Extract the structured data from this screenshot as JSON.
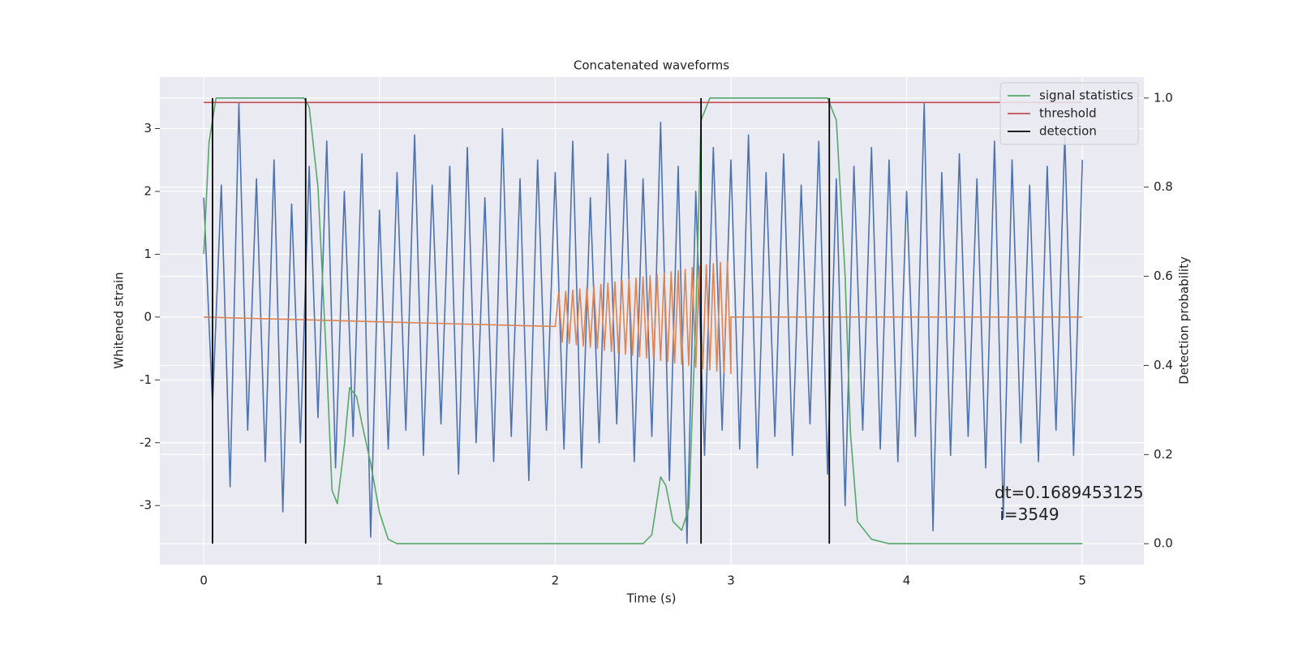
{
  "chart_data": {
    "type": "line",
    "title": "Concatenated waveforms",
    "xlabel": "Time (s)",
    "ylabel": "Whitened strain",
    "y2label": "Detection probability",
    "xlim": [
      -0.25,
      5.35
    ],
    "ylim": [
      -3.94,
      3.82
    ],
    "y2lim": [
      -0.047,
      1.047
    ],
    "xticks": [
      0,
      1,
      2,
      3,
      4,
      5
    ],
    "yticks": [
      -3,
      -2,
      -1,
      0,
      1,
      2,
      3
    ],
    "y2ticks": [
      {
        "value": 0,
        "label": "0.0"
      },
      0.2,
      0.4,
      0.6,
      0.8,
      {
        "value": 1,
        "label": "1.0"
      }
    ],
    "grid": true,
    "legend": "upper right",
    "series": [
      {
        "color": "#4c72b0",
        "x": [
          0,
          0.05,
          0.1,
          0.15,
          0.2,
          0.25,
          0.3,
          0.35,
          0.4,
          0.45,
          0.5,
          0.55,
          0.6,
          0.65,
          0.7,
          0.75,
          0.8,
          0.85,
          0.9,
          0.95,
          1,
          1.05,
          1.1,
          1.15,
          1.2,
          1.25,
          1.3,
          1.35,
          1.4,
          1.45,
          1.5,
          1.55,
          1.6,
          1.65,
          1.7,
          1.75,
          1.8,
          1.85,
          1.9,
          1.95,
          2,
          2.05,
          2.1,
          2.15,
          2.2,
          2.25,
          2.3,
          2.35,
          2.4,
          2.45,
          2.5,
          2.55,
          2.6,
          2.65,
          2.7,
          2.75,
          2.8,
          2.85,
          2.9,
          2.95,
          3,
          3.05,
          3.1,
          3.15,
          3.2,
          3.25,
          3.3,
          3.35,
          3.4,
          3.45,
          3.5,
          3.55,
          3.6,
          3.65,
          3.7,
          3.75,
          3.8,
          3.85,
          3.9,
          3.95,
          4,
          4.05,
          4.1,
          4.15,
          4.2,
          4.25,
          4.3,
          4.35,
          4.4,
          4.45,
          4.5,
          4.55,
          4.6,
          4.65,
          4.7,
          4.75,
          4.8,
          4.85,
          4.9,
          4.95,
          5
        ],
        "values": [
          1.9,
          -1.4,
          2.1,
          -2.7,
          3.4,
          -1.8,
          2.2,
          -2.3,
          2.5,
          -3.1,
          1.8,
          -2.0,
          2.4,
          -1.6,
          2.8,
          -2.4,
          2.0,
          -1.9,
          2.6,
          -3.5,
          1.7,
          -2.1,
          2.3,
          -1.8,
          2.9,
          -2.2,
          2.1,
          -1.7,
          2.4,
          -2.5,
          2.7,
          -2.0,
          1.9,
          -2.3,
          3.0,
          -1.9,
          2.2,
          -2.6,
          2.5,
          -1.8,
          2.3,
          -2.1,
          2.8,
          -2.4,
          1.9,
          -2.0,
          2.6,
          -1.7,
          2.5,
          -2.3,
          2.2,
          -1.9,
          3.1,
          -2.6,
          2.4,
          -3.6,
          2.0,
          -2.2,
          2.7,
          -1.8,
          2.5,
          -2.1,
          2.9,
          -2.4,
          2.3,
          -1.9,
          2.6,
          -2.2,
          2.1,
          -1.7,
          2.8,
          -2.5,
          2.2,
          -3.0,
          2.4,
          -1.8,
          2.7,
          -2.1,
          2.5,
          -2.3,
          2.0,
          -1.9,
          3.4,
          -3.4,
          2.3,
          -2.2,
          2.6,
          -1.9,
          2.2,
          -2.4,
          2.8,
          -3.2,
          2.5,
          -2.0,
          2.1,
          -2.3,
          2.4,
          -1.8,
          2.9,
          -2.2,
          2.5
        ]
      },
      {
        "color": "#dd8452",
        "x": [
          0,
          2,
          2.02,
          2.04,
          2.06,
          2.08,
          2.1,
          2.12,
          2.14,
          2.16,
          2.18,
          2.2,
          2.22,
          2.24,
          2.26,
          2.28,
          2.3,
          2.32,
          2.34,
          2.36,
          2.38,
          2.4,
          2.42,
          2.44,
          2.46,
          2.48,
          2.5,
          2.52,
          2.54,
          2.56,
          2.58,
          2.6,
          2.62,
          2.64,
          2.66,
          2.68,
          2.7,
          2.72,
          2.74,
          2.76,
          2.78,
          2.8,
          2.82,
          2.84,
          2.86,
          2.88,
          2.9,
          2.92,
          2.94,
          2.96,
          2.98,
          3,
          3,
          5
        ],
        "values": [
          0,
          -0.15,
          0.39,
          -0.4,
          0.41,
          -0.42,
          0.43,
          -0.44,
          0.45,
          -0.46,
          0.47,
          -0.48,
          0.49,
          -0.5,
          0.52,
          -0.53,
          0.54,
          -0.55,
          0.56,
          -0.57,
          0.58,
          -0.59,
          0.6,
          -0.61,
          0.62,
          -0.63,
          0.64,
          -0.65,
          0.66,
          -0.67,
          0.68,
          -0.69,
          0.7,
          -0.71,
          0.72,
          -0.73,
          0.74,
          -0.75,
          0.76,
          -0.77,
          0.79,
          -0.8,
          0.81,
          -0.82,
          0.83,
          -0.84,
          0.85,
          -0.86,
          0.87,
          -0.88,
          0.89,
          -0.9,
          0,
          0
        ]
      },
      {
        "name": "signal statistics",
        "color": "#55a868",
        "axis": "y2",
        "x": [
          0,
          0.03,
          0.07,
          0.57,
          0.6,
          0.65,
          0.7,
          0.73,
          0.76,
          0.8,
          0.83,
          0.87,
          0.9,
          0.95,
          1,
          1.05,
          1.1,
          2.5,
          2.55,
          2.6,
          2.63,
          2.67,
          2.72,
          2.76,
          2.8,
          2.83,
          2.88,
          3.55,
          3.6,
          3.65,
          3.68,
          3.72,
          3.8,
          3.9,
          5
        ],
        "values": [
          0.65,
          0.9,
          1.0,
          1.0,
          0.98,
          0.8,
          0.4,
          0.12,
          0.09,
          0.22,
          0.35,
          0.33,
          0.27,
          0.18,
          0.07,
          0.01,
          0.0,
          0.0,
          0.02,
          0.15,
          0.13,
          0.05,
          0.03,
          0.08,
          0.5,
          0.95,
          1.0,
          1.0,
          0.95,
          0.6,
          0.25,
          0.05,
          0.01,
          0.0,
          0.0
        ]
      },
      {
        "name": "threshold",
        "color": "#c44e52",
        "axis": "y2",
        "x": [
          0,
          5
        ],
        "values": [
          0.99,
          0.99
        ]
      }
    ],
    "detection": {
      "name": "detection",
      "color": "#000000",
      "axis": "y2",
      "ymin": 0,
      "ymax": 1,
      "x": [
        0.05,
        0.58,
        2.83,
        3.56
      ]
    },
    "annotation": [
      "dt=0.1689453125",
      " i=3549"
    ]
  }
}
